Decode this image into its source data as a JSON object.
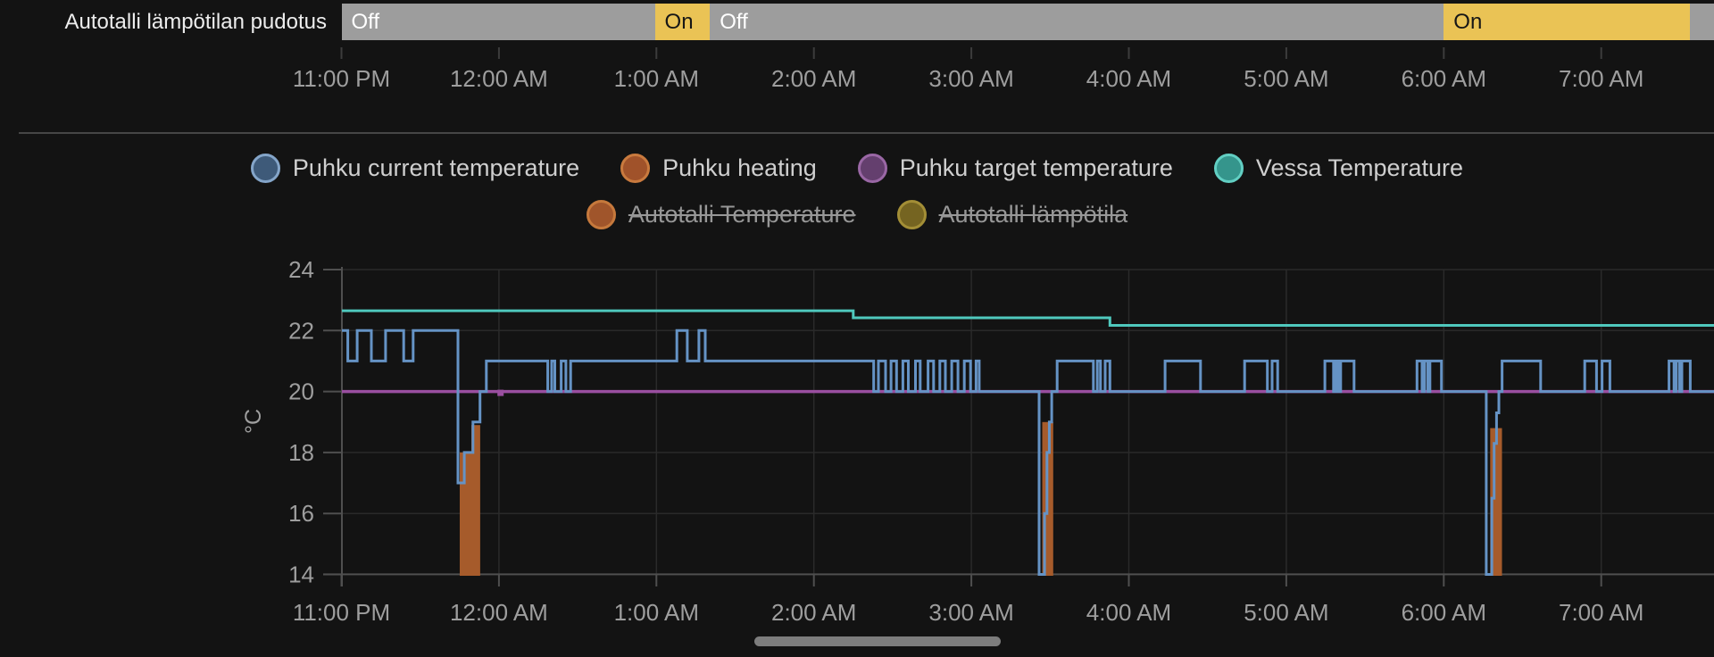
{
  "top_bar": {
    "entity": "Autotalli lämpötilan pudotus",
    "colors": {
      "on": "#eac355",
      "off": "#9d9d9d",
      "on_text": "#161616",
      "off_text": "#ffffff"
    },
    "segments": [
      {
        "state": "Off",
        "from": 0.0,
        "to": 1.99,
        "label_visible": true
      },
      {
        "state": "On",
        "from": 1.99,
        "to": 2.34,
        "label_visible": true
      },
      {
        "state": "Off",
        "from": 2.34,
        "to": 7.0,
        "label_visible": true
      },
      {
        "state": "On",
        "from": 7.0,
        "to": 8.565,
        "label_visible": true
      },
      {
        "state": "Off",
        "from": 8.565,
        "to": 8.72,
        "label_visible": false
      }
    ]
  },
  "legend": {
    "rows": [
      [
        {
          "label": "Puhku current temperature",
          "fill": "#3e5a79",
          "ring": "#84a5c9",
          "disabled": false
        },
        {
          "label": "Puhku heating",
          "fill": "#a0522a",
          "ring": "#c97a3e",
          "disabled": false
        },
        {
          "label": "Puhku target temperature",
          "fill": "#643f6e",
          "ring": "#9a67a5",
          "disabled": false
        },
        {
          "label": "Vessa Temperature",
          "fill": "#35958c",
          "ring": "#62cfc3",
          "disabled": false
        }
      ],
      [
        {
          "label": "Autotalli Temperature",
          "fill": "#a0552b",
          "ring": "#c6793c",
          "disabled": true
        },
        {
          "label": "Autotalli lämpötila",
          "fill": "#756421",
          "ring": "#a38e36",
          "disabled": true
        }
      ]
    ]
  },
  "chart_data": {
    "type": "line",
    "title": "",
    "ylabel": "°C",
    "ylim": [
      14,
      24
    ],
    "y_ticks": [
      14,
      16,
      18,
      20,
      22,
      24
    ],
    "x_unit_hours_from": "11:00 PM",
    "xlim": [
      0,
      8.72
    ],
    "grid": true,
    "legend_position": "top",
    "x_ticks": [
      {
        "t": 0,
        "label": "11:00 PM"
      },
      {
        "t": 1,
        "label": "12:00 AM"
      },
      {
        "t": 2,
        "label": "1:00 AM"
      },
      {
        "t": 3,
        "label": "2:00 AM"
      },
      {
        "t": 4,
        "label": "3:00 AM"
      },
      {
        "t": 5,
        "label": "4:00 AM"
      },
      {
        "t": 6,
        "label": "5:00 AM"
      },
      {
        "t": 7,
        "label": "6:00 AM"
      },
      {
        "t": 8,
        "label": "7:00 AM"
      }
    ],
    "series": [
      {
        "name": "Puhku current temperature",
        "type": "step-line",
        "color": "#6593c5",
        "width": 3,
        "points": [
          [
            0,
            22
          ],
          [
            0.04,
            21
          ],
          [
            0.1,
            22
          ],
          [
            0.19,
            21
          ],
          [
            0.28,
            22
          ],
          [
            0.395,
            21
          ],
          [
            0.455,
            22
          ],
          [
            0.74,
            17
          ],
          [
            0.78,
            18
          ],
          [
            0.835,
            19
          ],
          [
            0.88,
            20
          ],
          [
            0.92,
            21
          ],
          [
            1.31,
            20
          ],
          [
            1.335,
            21
          ],
          [
            1.355,
            20
          ],
          [
            1.395,
            21
          ],
          [
            1.425,
            20
          ],
          [
            1.455,
            21
          ],
          [
            2.13,
            22
          ],
          [
            2.196,
            21
          ],
          [
            2.27,
            22
          ],
          [
            2.31,
            21
          ],
          [
            3.38,
            20
          ],
          [
            3.41,
            21
          ],
          [
            3.455,
            20
          ],
          [
            3.49,
            21
          ],
          [
            3.525,
            20
          ],
          [
            3.565,
            21
          ],
          [
            3.6,
            20
          ],
          [
            3.645,
            21
          ],
          [
            3.675,
            20
          ],
          [
            3.725,
            21
          ],
          [
            3.76,
            20
          ],
          [
            3.8,
            21
          ],
          [
            3.835,
            20
          ],
          [
            3.875,
            21
          ],
          [
            3.915,
            20
          ],
          [
            3.955,
            21
          ],
          [
            3.995,
            20
          ],
          [
            4.03,
            21
          ],
          [
            4.05,
            20
          ],
          [
            4.43,
            14
          ],
          [
            4.465,
            16
          ],
          [
            4.48,
            18
          ],
          [
            4.495,
            19
          ],
          [
            4.51,
            20
          ],
          [
            4.545,
            21
          ],
          [
            4.775,
            20
          ],
          [
            4.8,
            21
          ],
          [
            4.82,
            20
          ],
          [
            4.85,
            21
          ],
          [
            4.88,
            20
          ],
          [
            5.23,
            21
          ],
          [
            5.455,
            20
          ],
          [
            5.735,
            21
          ],
          [
            5.88,
            20
          ],
          [
            5.91,
            21
          ],
          [
            5.945,
            20
          ],
          [
            6.245,
            21
          ],
          [
            6.3,
            20
          ],
          [
            6.315,
            21
          ],
          [
            6.33,
            20
          ],
          [
            6.345,
            21
          ],
          [
            6.43,
            20
          ],
          [
            6.83,
            21
          ],
          [
            6.862,
            20
          ],
          [
            6.877,
            21
          ],
          [
            6.898,
            20
          ],
          [
            6.912,
            21
          ],
          [
            6.985,
            20
          ],
          [
            7.27,
            14
          ],
          [
            7.305,
            16.5
          ],
          [
            7.32,
            18.3
          ],
          [
            7.335,
            19.3
          ],
          [
            7.35,
            20
          ],
          [
            7.37,
            21
          ],
          [
            7.615,
            20
          ],
          [
            7.895,
            21
          ],
          [
            7.97,
            20
          ],
          [
            8.005,
            21
          ],
          [
            8.055,
            20
          ],
          [
            8.43,
            21
          ],
          [
            8.462,
            20
          ],
          [
            8.477,
            21
          ],
          [
            8.498,
            20
          ],
          [
            8.512,
            21
          ],
          [
            8.565,
            20
          ],
          [
            8.72,
            20
          ]
        ]
      },
      {
        "name": "Puhku heating",
        "type": "area-bars",
        "color": "#a65b2b",
        "bars": [
          {
            "from": 0.751,
            "to": 0.825,
            "top": 18.0
          },
          {
            "from": 0.825,
            "to": 0.881,
            "top": 18.9
          },
          {
            "from": 4.45,
            "to": 4.52,
            "top": 19.0
          },
          {
            "from": 7.295,
            "to": 7.37,
            "top": 18.8
          }
        ]
      },
      {
        "name": "Puhku target temperature",
        "type": "step-line",
        "color": "#9a4fa0",
        "width": 3.5,
        "points": [
          [
            0,
            20
          ],
          [
            8.72,
            20
          ]
        ],
        "marker": [
          1.01,
          20
        ]
      },
      {
        "name": "Vessa Temperature",
        "type": "step-line",
        "color": "#4fc8bd",
        "width": 3,
        "points": [
          [
            0,
            22.65
          ],
          [
            3.25,
            22.42
          ],
          [
            4.88,
            22.17
          ],
          [
            8.72,
            22.17
          ]
        ]
      },
      {
        "name": "Autotalli Temperature",
        "hidden": true
      },
      {
        "name": "Autotalli lämpötila",
        "hidden": true
      }
    ]
  }
}
